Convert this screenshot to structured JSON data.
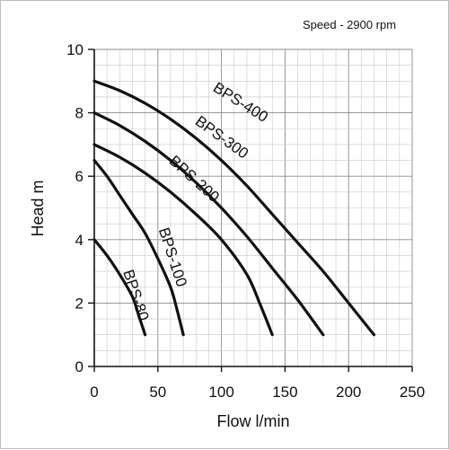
{
  "chart_data": {
    "type": "line",
    "annotation": "Speed - 2900 rpm",
    "xlabel": "Flow l/min",
    "ylabel": "Head m",
    "xlim": [
      0,
      250
    ],
    "ylim": [
      0,
      10
    ],
    "x_ticks": [
      0,
      50,
      100,
      150,
      200,
      250
    ],
    "y_ticks": [
      0,
      2,
      4,
      6,
      8,
      10
    ],
    "grid": true,
    "series": [
      {
        "name": "BPS-400",
        "x": [
          0,
          20,
          40,
          60,
          80,
          100,
          120,
          140,
          160,
          180,
          200,
          220
        ],
        "y": [
          9.0,
          8.7,
          8.3,
          7.8,
          7.2,
          6.5,
          5.7,
          4.8,
          3.9,
          3.0,
          2.0,
          1.0
        ]
      },
      {
        "name": "BPS-300",
        "x": [
          0,
          20,
          40,
          60,
          80,
          100,
          120,
          140,
          160,
          180
        ],
        "y": [
          8.0,
          7.6,
          7.1,
          6.5,
          5.8,
          5.0,
          4.1,
          3.1,
          2.1,
          1.0
        ]
      },
      {
        "name": "BPS-200",
        "x": [
          0,
          20,
          40,
          60,
          80,
          100,
          120,
          130,
          140
        ],
        "y": [
          7.0,
          6.6,
          6.1,
          5.5,
          4.8,
          4.0,
          2.9,
          2.0,
          1.0
        ]
      },
      {
        "name": "BPS-100",
        "x": [
          0,
          10,
          20,
          30,
          40,
          50,
          60,
          65,
          70
        ],
        "y": [
          6.5,
          6.0,
          5.4,
          4.8,
          4.2,
          3.4,
          2.5,
          1.8,
          1.0
        ]
      },
      {
        "name": "BPS-80",
        "x": [
          0,
          10,
          20,
          30,
          35,
          40
        ],
        "y": [
          4.0,
          3.5,
          2.9,
          2.2,
          1.6,
          1.0
        ]
      }
    ]
  }
}
